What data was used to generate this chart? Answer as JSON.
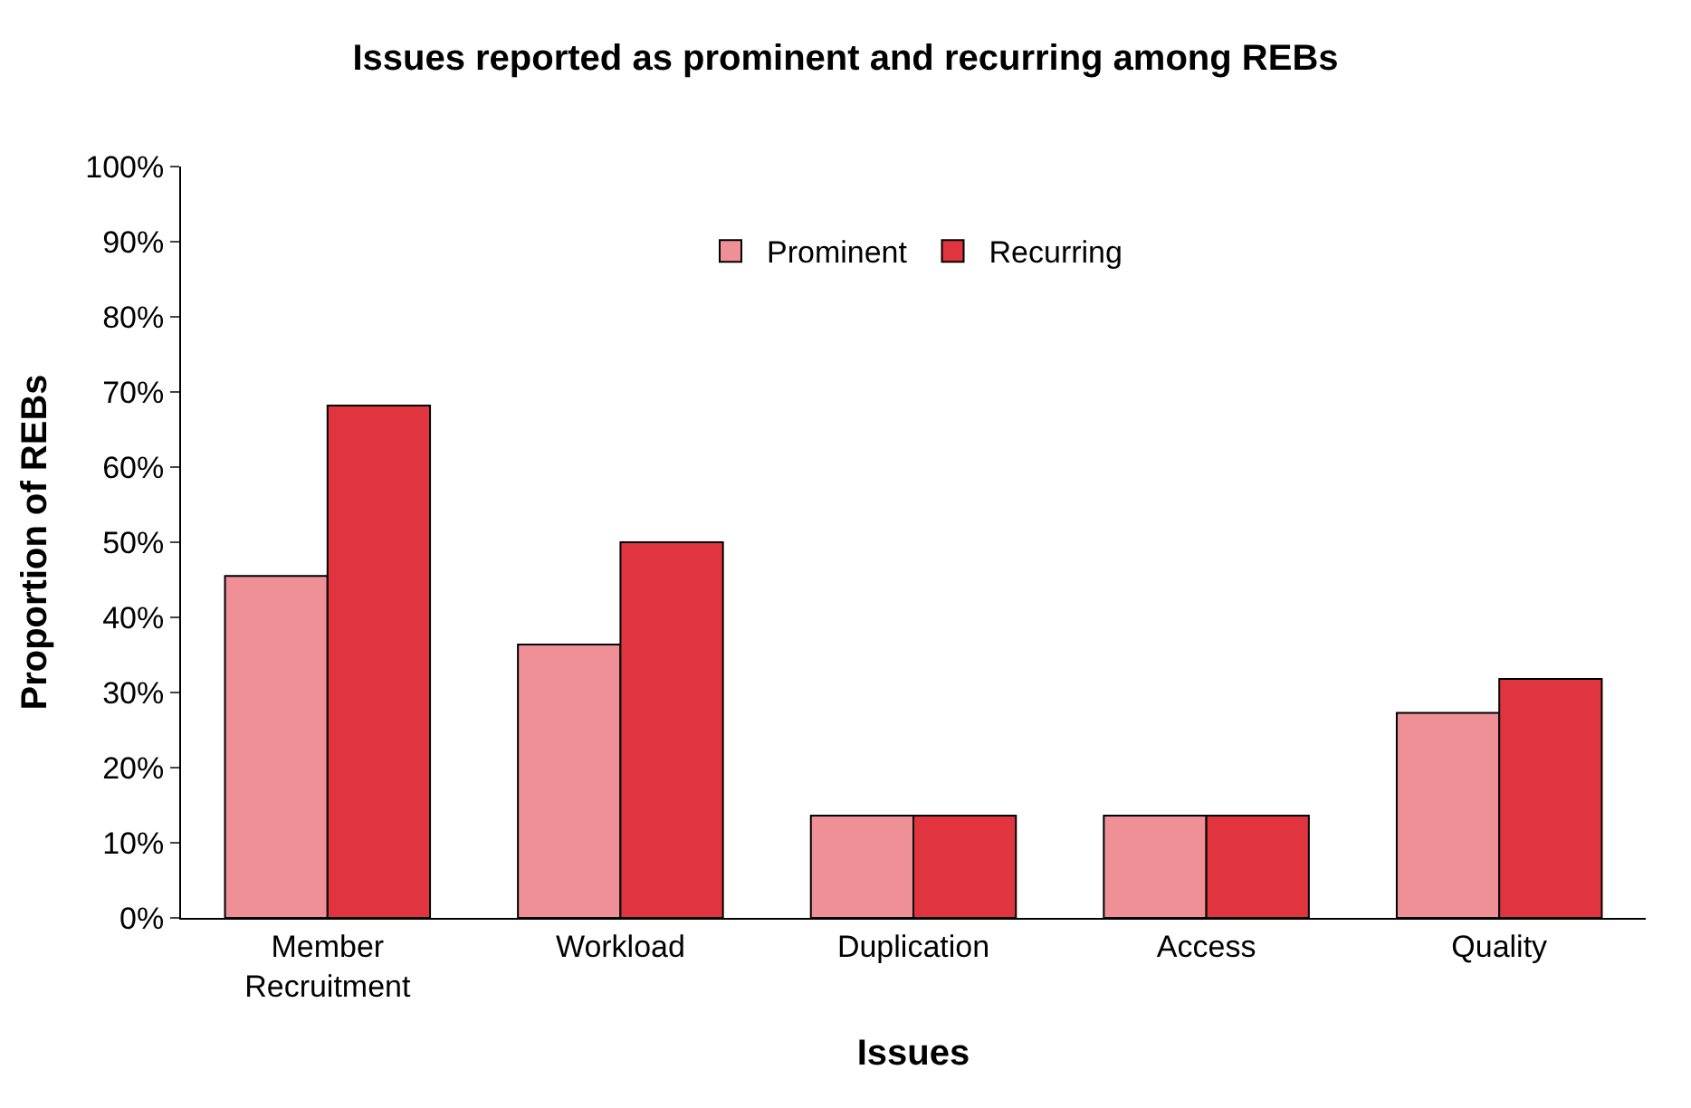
{
  "chart_data": {
    "type": "bar",
    "title": "Issues reported as prominent and recurring among REBs",
    "xlabel": "Issues",
    "ylabel": "Proportion of REBs",
    "categories": [
      "Member Recruitment",
      "Workload",
      "Duplication",
      "Access",
      "Quality"
    ],
    "series": [
      {
        "name": "Prominent",
        "color": "#ee9096",
        "values": [
          45.5,
          36.4,
          13.6,
          13.6,
          27.3
        ]
      },
      {
        "name": "Recurring",
        "color": "#e0343f",
        "values": [
          68.2,
          50.0,
          13.6,
          13.6,
          31.8
        ]
      }
    ],
    "ylim": [
      0,
      100
    ],
    "yticks": [
      {
        "value": 0,
        "label": "0%"
      },
      {
        "value": 10,
        "label": "10%"
      },
      {
        "value": 20,
        "label": "20%"
      },
      {
        "value": 30,
        "label": "30%"
      },
      {
        "value": 40,
        "label": "40%"
      },
      {
        "value": 50,
        "label": "50%"
      },
      {
        "value": 60,
        "label": "60%"
      },
      {
        "value": 70,
        "label": "70%"
      },
      {
        "value": 80,
        "label": "80%"
      },
      {
        "value": 90,
        "label": "90%"
      },
      {
        "value": 100,
        "label": "100%"
      }
    ],
    "legend": "top"
  }
}
